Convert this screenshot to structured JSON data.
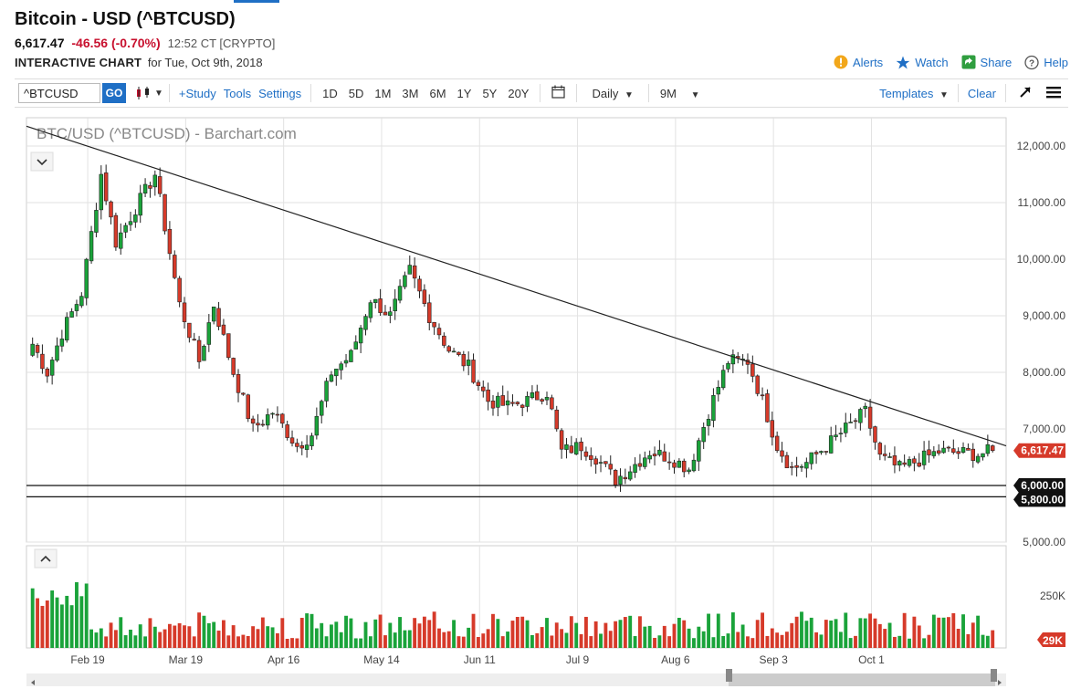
{
  "header": {
    "title": "Bitcoin - USD (^BTCUSD)",
    "price": "6,617.47",
    "change": "-46.56 (-0.70%)",
    "time": "12:52 CT [CRYPTO]",
    "subtitle_strong": "INTERACTIVE CHART",
    "subtitle_date": "for Tue, Oct 9th, 2018"
  },
  "actions": {
    "alerts": "Alerts",
    "watch": "Watch",
    "share": "Share",
    "help": "Help"
  },
  "toolbar": {
    "symbol_value": "^BTCUSD",
    "go": "GO",
    "study": "+Study",
    "tools": "Tools",
    "settings": "Settings",
    "ranges": [
      "1D",
      "5D",
      "1M",
      "3M",
      "6M",
      "1Y",
      "5Y",
      "20Y"
    ],
    "interval": "Daily",
    "period": "9M",
    "templates": "Templates",
    "clear": "Clear"
  },
  "colors": {
    "up": "#1aa33a",
    "down": "#d63a2a",
    "accent": "#1f6fc5",
    "grid": "#e2e2e2"
  },
  "chart_data": {
    "type": "candlestick",
    "title": "BTC/USD (^BTCUSD) - Barchart.com",
    "y_ticks": [
      "5,000.00",
      "6,000.00",
      "7,000.00",
      "8,000.00",
      "9,000.00",
      "10,000.00",
      "11,000.00",
      "12,000.00"
    ],
    "ylim": [
      5000,
      12500
    ],
    "x_ticks": [
      "Feb 19",
      "Mar 19",
      "Apr 16",
      "May 14",
      "Jun 11",
      "Jul 9",
      "Aug 6",
      "Sep 3",
      "Oct 1"
    ],
    "last_price_label": "6,617.47",
    "support_labels": [
      "6,000.00",
      "5,800.00"
    ],
    "support_levels": [
      6000,
      5800
    ],
    "trendline": {
      "from": 12350,
      "to": 6700
    },
    "volume": {
      "y_ticks": [
        "250K"
      ],
      "last_label": "29K"
    },
    "anchors": [
      {
        "i": 0,
        "p": 8500
      },
      {
        "i": 3,
        "p": 8000
      },
      {
        "i": 6,
        "p": 8700
      },
      {
        "i": 10,
        "p": 9400
      },
      {
        "i": 14,
        "p": 11500
      },
      {
        "i": 17,
        "p": 10300
      },
      {
        "i": 21,
        "p": 10900
      },
      {
        "i": 25,
        "p": 11500
      },
      {
        "i": 30,
        "p": 9200
      },
      {
        "i": 34,
        "p": 8200
      },
      {
        "i": 37,
        "p": 9200
      },
      {
        "i": 41,
        "p": 8000
      },
      {
        "i": 45,
        "p": 7000
      },
      {
        "i": 49,
        "p": 7300
      },
      {
        "i": 54,
        "p": 6700
      },
      {
        "i": 57,
        "p": 6900
      },
      {
        "i": 61,
        "p": 8000
      },
      {
        "i": 65,
        "p": 8300
      },
      {
        "i": 69,
        "p": 9300
      },
      {
        "i": 73,
        "p": 9000
      },
      {
        "i": 77,
        "p": 9800
      },
      {
        "i": 81,
        "p": 9000
      },
      {
        "i": 85,
        "p": 8400
      },
      {
        "i": 89,
        "p": 8100
      },
      {
        "i": 93,
        "p": 7500
      },
      {
        "i": 97,
        "p": 7400
      },
      {
        "i": 101,
        "p": 7500
      },
      {
        "i": 105,
        "p": 7650
      },
      {
        "i": 108,
        "p": 6600
      },
      {
        "i": 112,
        "p": 6700
      },
      {
        "i": 115,
        "p": 6500
      },
      {
        "i": 119,
        "p": 6100
      },
      {
        "i": 122,
        "p": 6300
      },
      {
        "i": 126,
        "p": 6600
      },
      {
        "i": 130,
        "p": 6500
      },
      {
        "i": 134,
        "p": 6300
      },
      {
        "i": 138,
        "p": 7300
      },
      {
        "i": 142,
        "p": 8200
      },
      {
        "i": 146,
        "p": 8200
      },
      {
        "i": 149,
        "p": 7500
      },
      {
        "i": 152,
        "p": 6700
      },
      {
        "i": 155,
        "p": 6300
      },
      {
        "i": 158,
        "p": 6400
      },
      {
        "i": 162,
        "p": 6700
      },
      {
        "i": 166,
        "p": 7000
      },
      {
        "i": 170,
        "p": 7300
      },
      {
        "i": 173,
        "p": 6500
      },
      {
        "i": 177,
        "p": 6300
      },
      {
        "i": 181,
        "p": 6450
      },
      {
        "i": 185,
        "p": 6600
      },
      {
        "i": 189,
        "p": 6580
      },
      {
        "i": 193,
        "p": 6550
      },
      {
        "i": 196,
        "p": 6617
      }
    ]
  }
}
